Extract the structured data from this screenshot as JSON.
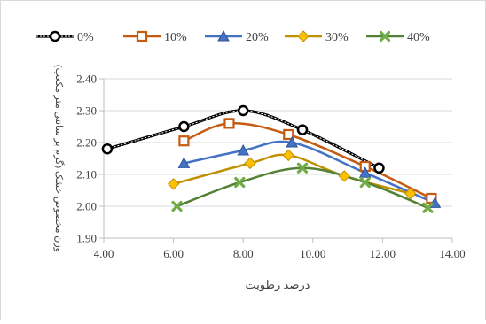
{
  "chart_data": {
    "type": "line",
    "xlabel": "درصد رطوبت",
    "ylabel": "وزن مخصوص خشک (گرم بر سانتی متر مکعب)",
    "xlim": [
      4.0,
      14.0
    ],
    "ylim": [
      1.9,
      2.4
    ],
    "x_ticks": [
      4.0,
      6.0,
      8.0,
      10.0,
      12.0,
      14.0
    ],
    "y_ticks": [
      1.9,
      2.0,
      2.1,
      2.2,
      2.3,
      2.4
    ],
    "x_tick_labels": [
      "4.00",
      "6.00",
      "8.00",
      "10.00",
      "12.00",
      "14.00"
    ],
    "y_tick_labels": [
      "1.90",
      "2.00",
      "2.10",
      "2.20",
      "2.30",
      "2.40"
    ],
    "grid": "horizontal",
    "legend_position": "top",
    "series": [
      {
        "name": "0%",
        "color": "#000000",
        "marker": "circle-open",
        "dashed": true,
        "x": [
          4.1,
          6.3,
          8.0,
          9.7,
          11.9
        ],
        "y": [
          2.18,
          2.25,
          2.3,
          2.24,
          2.12
        ]
      },
      {
        "name": "10%",
        "color": "#C55A11",
        "marker": "square-open",
        "x": [
          6.3,
          7.6,
          9.3,
          11.5,
          13.4
        ],
        "y": [
          2.205,
          2.26,
          2.225,
          2.125,
          2.025
        ]
      },
      {
        "name": "20%",
        "color": "#4472C4",
        "marker": "triangle",
        "x": [
          6.3,
          8.0,
          9.4,
          11.5,
          13.5
        ],
        "y": [
          2.135,
          2.175,
          2.2,
          2.105,
          2.01
        ]
      },
      {
        "name": "30%",
        "color": "#BF9000",
        "marker": "diamond",
        "x": [
          6.0,
          8.2,
          9.3,
          10.9,
          12.8
        ],
        "y": [
          2.07,
          2.135,
          2.16,
          2.095,
          2.04
        ]
      },
      {
        "name": "40%",
        "color": "#548235",
        "marker": "x",
        "x": [
          6.1,
          7.9,
          9.7,
          11.5,
          13.3
        ],
        "y": [
          2.0,
          2.075,
          2.12,
          2.075,
          1.995
        ]
      }
    ]
  }
}
